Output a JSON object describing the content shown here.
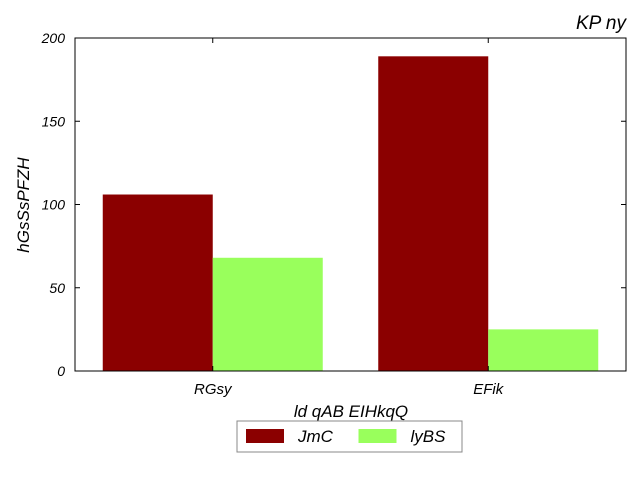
{
  "chart_data": {
    "type": "bar",
    "title": "KP ny",
    "xlabel": "ld qAB EIHkqQ",
    "ylabel": "hGsSsPFZH",
    "categories": [
      "RGsy",
      "EFik"
    ],
    "ylim": [
      0,
      200
    ],
    "yticks": [
      0,
      50,
      100,
      150,
      200
    ],
    "grid": false,
    "legend_position": "bottom-center",
    "series": [
      {
        "name": "JmC",
        "color": "#8b0000",
        "values": [
          106,
          189
        ]
      },
      {
        "name": "lyBS",
        "color": "#99ff5c",
        "values": [
          68,
          25
        ]
      }
    ]
  }
}
